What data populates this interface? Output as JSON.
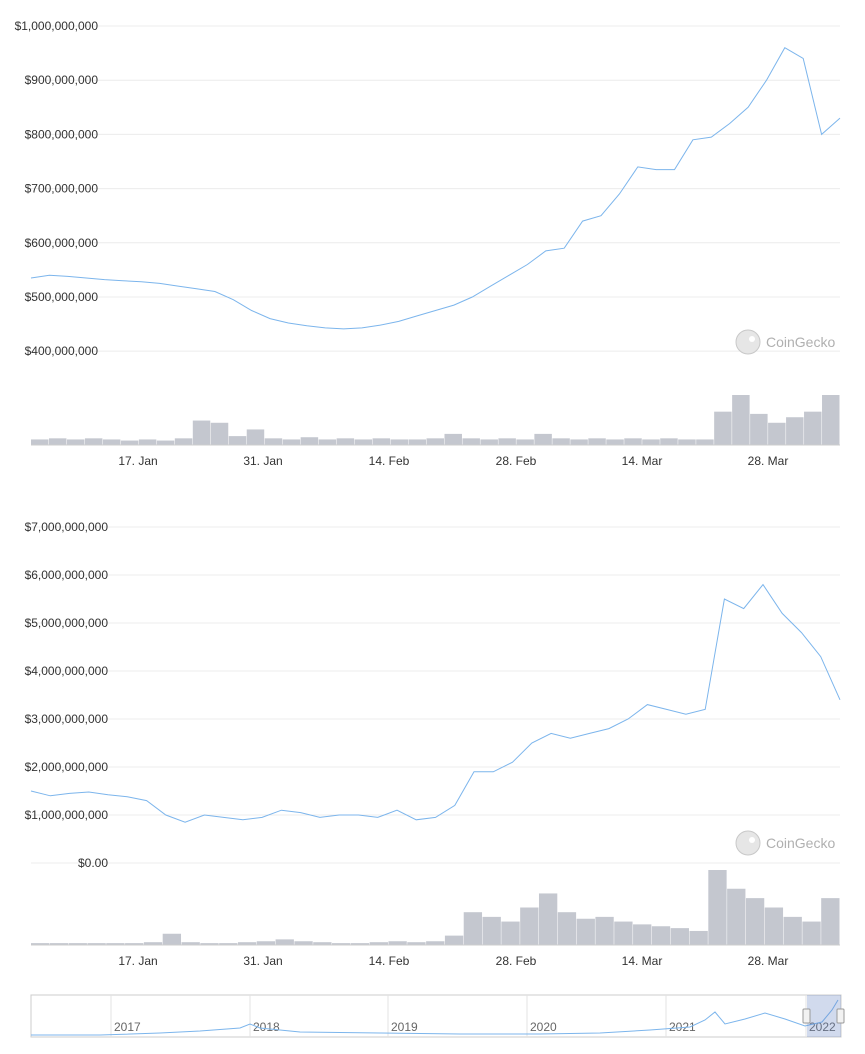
{
  "watermark": "CoinGecko",
  "colors": {
    "line": "#7cb5ec",
    "volume": "#c4c7cf",
    "grid": "#ececec",
    "navigator_mask": "rgba(102,133,194,0.3)"
  },
  "chart_data": [
    {
      "type": "line",
      "title": "",
      "xlabel": "",
      "ylabel": "",
      "x_tick_labels": [
        "17. Jan",
        "31. Jan",
        "14. Feb",
        "28. Feb",
        "14. Mar",
        "28. Mar"
      ],
      "y_tick_labels": [
        "$400,000,000",
        "$500,000,000",
        "$600,000,000",
        "$700,000,000",
        "$800,000,000",
        "$900,000,000",
        "$1,000,000,000"
      ],
      "ylim": [
        380000000,
        1000000000
      ],
      "grid": true,
      "series": [
        {
          "values": [
            535000000,
            540000000,
            538000000,
            535000000,
            532000000,
            530000000,
            528000000,
            525000000,
            520000000,
            515000000,
            510000000,
            495000000,
            475000000,
            460000000,
            452000000,
            447000000,
            443000000,
            441000000,
            443000000,
            448000000,
            455000000,
            465000000,
            475000000,
            485000000,
            500000000,
            520000000,
            540000000,
            560000000,
            585000000,
            590000000,
            640000000,
            650000000,
            690000000,
            740000000,
            735000000,
            735000000,
            790000000,
            795000000,
            820000000,
            850000000,
            900000000,
            960000000,
            940000000,
            800000000,
            830000000
          ]
        }
      ],
      "volume": [
        5,
        6,
        5,
        6,
        5,
        4,
        5,
        4,
        6,
        22,
        20,
        8,
        14,
        6,
        5,
        7,
        5,
        6,
        5,
        6,
        5,
        5,
        6,
        10,
        6,
        5,
        6,
        5,
        10,
        6,
        5,
        6,
        5,
        6,
        5,
        6,
        5,
        5,
        30,
        45,
        28,
        20,
        25,
        30,
        45
      ]
    },
    {
      "type": "line",
      "title": "",
      "xlabel": "",
      "ylabel": "",
      "x_tick_labels": [
        "17. Jan",
        "31. Jan",
        "14. Feb",
        "28. Feb",
        "14. Mar",
        "28. Mar"
      ],
      "y_tick_labels": [
        "$0.00",
        "$1,000,000,000",
        "$2,000,000,000",
        "$3,000,000,000",
        "$4,000,000,000",
        "$5,000,000,000",
        "$6,000,000,000",
        "$7,000,000,000"
      ],
      "ylim": [
        0,
        7000000000
      ],
      "grid": true,
      "series": [
        {
          "values": [
            1500000000,
            1400000000,
            1450000000,
            1480000000,
            1420000000,
            1380000000,
            1300000000,
            1000000000,
            850000000,
            1000000000,
            950000000,
            900000000,
            950000000,
            1100000000,
            1050000000,
            950000000,
            1000000000,
            1000000000,
            950000000,
            1100000000,
            900000000,
            950000000,
            1200000000,
            1900000000,
            1900000000,
            2100000000,
            2500000000,
            2700000000,
            2600000000,
            2700000000,
            2800000000,
            3000000000,
            3300000000,
            3200000000,
            3100000000,
            3200000000,
            5500000000,
            5300000000,
            5800000000,
            5200000000,
            4800000000,
            4300000000,
            3400000000
          ]
        }
      ],
      "volume": [
        2,
        2,
        2,
        2,
        2,
        2,
        3,
        12,
        3,
        2,
        2,
        3,
        4,
        6,
        4,
        3,
        2,
        2,
        3,
        4,
        3,
        4,
        10,
        35,
        30,
        25,
        40,
        55,
        35,
        28,
        30,
        25,
        22,
        20,
        18,
        15,
        80,
        60,
        50,
        40,
        30,
        25,
        50
      ]
    }
  ],
  "navigator": {
    "year_labels": [
      "2017",
      "2018",
      "2019",
      "2020",
      "2021",
      "2022"
    ]
  }
}
